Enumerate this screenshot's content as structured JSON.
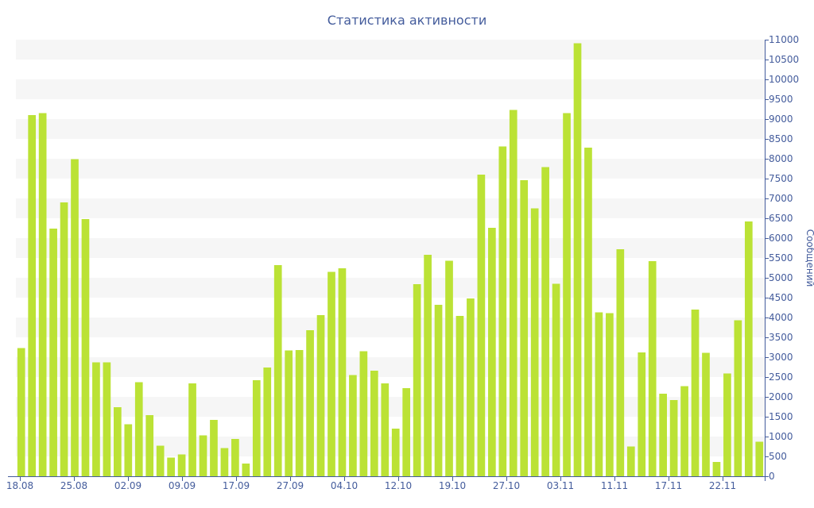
{
  "chart_data": {
    "type": "bar",
    "title": "Статистика активности",
    "ylabel": "Сообщений",
    "xlabel": "",
    "ylim": [
      0,
      11000
    ],
    "y_ticks": [
      0,
      500,
      1000,
      1500,
      2000,
      2500,
      3000,
      3500,
      4000,
      4500,
      5000,
      5500,
      6000,
      6500,
      7000,
      7500,
      8000,
      8500,
      9000,
      9500,
      10000,
      10500,
      11000
    ],
    "x_tick_labels": [
      "18.08",
      "25.08",
      "02.09",
      "09.09",
      "17.09",
      "27.09",
      "04.10",
      "12.10",
      "19.10",
      "27.10",
      "03.11",
      "11.11",
      "17.11",
      "22.11"
    ],
    "bar_color": "#bbe235",
    "grid_band_color": "#f6f6f6",
    "axis_color": "#445c9c",
    "values": [
      3230,
      9100,
      9150,
      6240,
      6900,
      7990,
      6480,
      2870,
      2870,
      1740,
      1310,
      2370,
      1540,
      770,
      470,
      550,
      2340,
      1030,
      1420,
      710,
      940,
      320,
      2420,
      2740,
      5320,
      3170,
      3180,
      3680,
      4060,
      5150,
      5240,
      2550,
      3150,
      2660,
      2340,
      1200,
      2220,
      4840,
      5580,
      4320,
      5430,
      4040,
      4480,
      7600,
      6260,
      8310,
      9230,
      7460,
      6750,
      7790,
      4850,
      9150,
      10910,
      8280,
      4130,
      4110,
      5720,
      750,
      3120,
      5420,
      2080,
      1920,
      2270,
      4200,
      3110,
      360,
      2590,
      3930,
      6420,
      870
    ]
  }
}
